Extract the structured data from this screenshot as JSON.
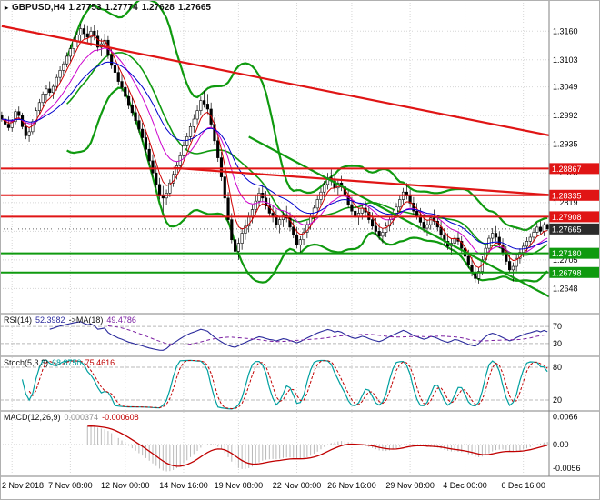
{
  "colors": {
    "resistance": "#e01515",
    "support": "#0f9a0f",
    "bull": "#ffffff",
    "bear": "#000000",
    "grid": "#d6d6d6",
    "separator": "#808080",
    "current_tag": "#2b2b2b",
    "rsi_line": "#2a2a9c",
    "rsi_ma_line": "#7b1fa2",
    "stoch_line": "#00a0a0",
    "signal_line": "#c00000",
    "macd_hist": "#b8b8b8",
    "ma_fast": "#d00000",
    "ma_mid": "#cc00cc",
    "ma_slow": "#0000cc"
  },
  "icons": {
    "chart_marker": "▸"
  },
  "chart_data": {
    "type": "candlestick",
    "title": "GBPUSD,H4",
    "ohlc": {
      "open": "1.27753",
      "high": "1.27774",
      "low": "1.27628",
      "close": "1.27665"
    },
    "price_range": [
      1.2598,
      1.3222
    ],
    "grid": true,
    "price_ticks": [
      "1.3160",
      "1.3103",
      "1.3049",
      "1.2992",
      "1.2935",
      "1.2878",
      "1.2819",
      "1.2762",
      "1.2705",
      "1.2648"
    ],
    "time_labels": [
      "2 Nov 2018",
      "7 Nov 08:00",
      "12 Nov 00:00",
      "14 Nov 16:00",
      "19 Nov 08:00",
      "22 Nov 00:00",
      "26 Nov 16:00",
      "29 Nov 08:00",
      "4 Dec 00:00",
      "6 Dec 16:00"
    ],
    "levels": [
      {
        "price": 1.28867,
        "label": "1.28867",
        "kind": "resistance"
      },
      {
        "price": 1.28335,
        "label": "1.28335",
        "kind": "resistance"
      },
      {
        "price": 1.27908,
        "label": "1.27908",
        "kind": "resistance"
      },
      {
        "price": 1.2718,
        "label": "1.27180",
        "kind": "support"
      },
      {
        "price": 1.26798,
        "label": "1.26798",
        "kind": "support"
      }
    ],
    "current_price": {
      "value": 1.27665,
      "label": "1.27665"
    },
    "trendlines": [
      {
        "kind": "resistance",
        "from": [
          0,
          1.317
        ],
        "to": [
          160,
          1.2952
        ]
      },
      {
        "kind": "resistance",
        "from": [
          50,
          1.2888
        ],
        "to": [
          160,
          1.2834
        ]
      },
      {
        "kind": "support",
        "from": [
          72,
          1.295
        ],
        "to": [
          160,
          1.263
        ]
      }
    ],
    "overlays": {
      "bollinger_period": 20,
      "bollinger_dev": 2,
      "ma_periods": [
        5,
        13,
        24
      ]
    },
    "indicators": {
      "rsi": {
        "name": "RSI(14)",
        "value": "52.3982",
        "ma_name": "->MA(18)",
        "ma_value": "49.4786",
        "period": 14,
        "ma_period": 18,
        "levels": [
          70,
          30
        ],
        "range": [
          0,
          100
        ]
      },
      "stochastic": {
        "name": "Stoch(5,3,3)",
        "value": "68.8750",
        "signal": "75.4616",
        "k": 5,
        "d": 3,
        "slowing": 3,
        "levels": [
          80,
          20
        ],
        "range": [
          0,
          100
        ]
      },
      "macd": {
        "name": "MACD(12,26,9)",
        "value": "0.000374",
        "signal": "-0.000608",
        "fast": 12,
        "slow": 26,
        "signal_period": 9,
        "axis_labels": [
          "0.0066",
          "0.00",
          "-0.0056"
        ],
        "range": [
          -0.0075,
          0.008
        ]
      }
    },
    "candles": [
      [
        1.2992,
        1.3,
        1.298,
        1.2985
      ],
      [
        1.2985,
        1.2995,
        1.297,
        1.2975
      ],
      [
        1.2975,
        1.299,
        1.2962,
        1.2968
      ],
      [
        1.2968,
        1.2985,
        1.296,
        1.298
      ],
      [
        1.298,
        1.3005,
        1.2975,
        1.3
      ],
      [
        1.3,
        1.301,
        1.2985,
        1.2992
      ],
      [
        1.2992,
        1.2998,
        1.2965,
        1.297
      ],
      [
        1.297,
        1.2978,
        1.2945,
        1.2952
      ],
      [
        1.2952,
        1.2968,
        1.294,
        1.296
      ],
      [
        1.296,
        1.2985,
        1.2955,
        1.298
      ],
      [
        1.298,
        1.3008,
        1.2975,
        1.3002
      ],
      [
        1.3002,
        1.3025,
        1.2995,
        1.3018
      ],
      [
        1.3018,
        1.304,
        1.301,
        1.3035
      ],
      [
        1.3035,
        1.3052,
        1.3022,
        1.3045
      ],
      [
        1.3045,
        1.306,
        1.303,
        1.3038
      ],
      [
        1.3038,
        1.3055,
        1.3025,
        1.305
      ],
      [
        1.305,
        1.3075,
        1.3042,
        1.3068
      ],
      [
        1.3068,
        1.309,
        1.306,
        1.3082
      ],
      [
        1.3082,
        1.31,
        1.307,
        1.3095
      ],
      [
        1.3095,
        1.3118,
        1.3088,
        1.311
      ],
      [
        1.311,
        1.3132,
        1.31,
        1.3125
      ],
      [
        1.3125,
        1.3148,
        1.3115,
        1.314
      ],
      [
        1.314,
        1.316,
        1.3128,
        1.3152
      ],
      [
        1.3152,
        1.3175,
        1.314,
        1.3165
      ],
      [
        1.3165,
        1.3174,
        1.3145,
        1.3155
      ],
      [
        1.3155,
        1.317,
        1.3135,
        1.3148
      ],
      [
        1.3148,
        1.3168,
        1.313,
        1.316
      ],
      [
        1.316,
        1.3172,
        1.3142,
        1.315
      ],
      [
        1.315,
        1.3162,
        1.312,
        1.3128
      ],
      [
        1.3128,
        1.3145,
        1.311,
        1.3135
      ],
      [
        1.3135,
        1.3155,
        1.3125,
        1.3142
      ],
      [
        1.3142,
        1.315,
        1.3105,
        1.3112
      ],
      [
        1.3112,
        1.3125,
        1.3085,
        1.3092
      ],
      [
        1.3092,
        1.3108,
        1.307,
        1.3078
      ],
      [
        1.3078,
        1.309,
        1.3052,
        1.306
      ],
      [
        1.306,
        1.3075,
        1.304,
        1.3048
      ],
      [
        1.3048,
        1.3062,
        1.3022,
        1.303
      ],
      [
        1.303,
        1.3045,
        1.3005,
        1.3012
      ],
      [
        1.3012,
        1.3028,
        1.299,
        1.2998
      ],
      [
        1.2998,
        1.3015,
        1.2975,
        1.2982
      ],
      [
        1.2982,
        1.2995,
        1.2958,
        1.2965
      ],
      [
        1.2965,
        1.2978,
        1.294,
        1.2948
      ],
      [
        1.2948,
        1.296,
        1.2918,
        1.2925
      ],
      [
        1.2925,
        1.2938,
        1.2895,
        1.2902
      ],
      [
        1.2902,
        1.2915,
        1.287,
        1.2878
      ],
      [
        1.2878,
        1.2892,
        1.2848,
        1.2855
      ],
      [
        1.2855,
        1.2868,
        1.2825,
        1.2832
      ],
      [
        1.2832,
        1.2852,
        1.28,
        1.2828
      ],
      [
        1.2828,
        1.2845,
        1.2815,
        1.2838
      ],
      [
        1.2838,
        1.2865,
        1.283,
        1.2858
      ],
      [
        1.2858,
        1.2882,
        1.285,
        1.2875
      ],
      [
        1.2875,
        1.29,
        1.2865,
        1.2892
      ],
      [
        1.2892,
        1.292,
        1.2885,
        1.2912
      ],
      [
        1.2912,
        1.294,
        1.2905,
        1.2932
      ],
      [
        1.2932,
        1.2958,
        1.2925,
        1.295
      ],
      [
        1.295,
        1.2978,
        1.294,
        1.297
      ],
      [
        1.297,
        1.2995,
        1.2958,
        1.2985
      ],
      [
        1.2985,
        1.3012,
        1.2975,
        1.3002
      ],
      [
        1.3002,
        1.303,
        1.2992,
        1.3022
      ],
      [
        1.3022,
        1.3042,
        1.3008,
        1.3015
      ],
      [
        1.3015,
        1.3035,
        1.2995,
        1.3005
      ],
      [
        1.3005,
        1.3018,
        1.2968,
        1.2975
      ],
      [
        1.2975,
        1.2988,
        1.2935,
        1.2942
      ],
      [
        1.2942,
        1.2955,
        1.29,
        1.2908
      ],
      [
        1.2908,
        1.292,
        1.2862,
        1.287
      ],
      [
        1.287,
        1.2882,
        1.282,
        1.2828
      ],
      [
        1.2828,
        1.284,
        1.2778,
        1.2785
      ],
      [
        1.2785,
        1.2798,
        1.2738,
        1.2745
      ],
      [
        1.2745,
        1.2762,
        1.27,
        1.2722
      ],
      [
        1.2722,
        1.2748,
        1.2705,
        1.2738
      ],
      [
        1.2738,
        1.2768,
        1.2725,
        1.2758
      ],
      [
        1.2758,
        1.2785,
        1.2745,
        1.2772
      ],
      [
        1.2772,
        1.28,
        1.276,
        1.279
      ],
      [
        1.279,
        1.2815,
        1.2778,
        1.2805
      ],
      [
        1.2805,
        1.2832,
        1.2795,
        1.2822
      ],
      [
        1.2822,
        1.2848,
        1.281,
        1.2838
      ],
      [
        1.2838,
        1.2855,
        1.282,
        1.2828
      ],
      [
        1.2828,
        1.2842,
        1.2805,
        1.2812
      ],
      [
        1.2812,
        1.2828,
        1.279,
        1.2798
      ],
      [
        1.2798,
        1.2815,
        1.278,
        1.279
      ],
      [
        1.279,
        1.2805,
        1.2768,
        1.2775
      ],
      [
        1.2775,
        1.2792,
        1.2758,
        1.2785
      ],
      [
        1.2785,
        1.2802,
        1.277,
        1.2795
      ],
      [
        1.2795,
        1.2812,
        1.278,
        1.2788
      ],
      [
        1.2788,
        1.28,
        1.2762,
        1.277
      ],
      [
        1.277,
        1.2785,
        1.2748,
        1.2755
      ],
      [
        1.2755,
        1.277,
        1.2728,
        1.2735
      ],
      [
        1.2735,
        1.2752,
        1.272,
        1.2745
      ],
      [
        1.2745,
        1.2768,
        1.2735,
        1.276
      ],
      [
        1.276,
        1.2782,
        1.2748,
        1.2775
      ],
      [
        1.2775,
        1.2798,
        1.2765,
        1.279
      ],
      [
        1.279,
        1.2815,
        1.278,
        1.2808
      ],
      [
        1.2808,
        1.2832,
        1.2798,
        1.2825
      ],
      [
        1.2825,
        1.2848,
        1.2815,
        1.284
      ],
      [
        1.284,
        1.2862,
        1.2828,
        1.2855
      ],
      [
        1.2855,
        1.2878,
        1.2845,
        1.2868
      ],
      [
        1.2868,
        1.2885,
        1.2852,
        1.2862
      ],
      [
        1.2862,
        1.2875,
        1.284,
        1.2848
      ],
      [
        1.2848,
        1.2865,
        1.2832,
        1.2858
      ],
      [
        1.2858,
        1.2872,
        1.2842,
        1.285
      ],
      [
        1.285,
        1.2862,
        1.2825,
        1.2832
      ],
      [
        1.2832,
        1.2845,
        1.2808,
        1.2815
      ],
      [
        1.2815,
        1.283,
        1.2795,
        1.2802
      ],
      [
        1.2802,
        1.2818,
        1.2782,
        1.279
      ],
      [
        1.279,
        1.2808,
        1.2775,
        1.2798
      ],
      [
        1.2798,
        1.2815,
        1.2785,
        1.2808
      ],
      [
        1.2808,
        1.2822,
        1.2792,
        1.28
      ],
      [
        1.28,
        1.2812,
        1.2778,
        1.2785
      ],
      [
        1.2785,
        1.28,
        1.2765,
        1.2772
      ],
      [
        1.2772,
        1.2788,
        1.2755,
        1.2762
      ],
      [
        1.2762,
        1.2778,
        1.2745,
        1.2752
      ],
      [
        1.2752,
        1.2768,
        1.2738,
        1.276
      ],
      [
        1.276,
        1.278,
        1.275,
        1.2772
      ],
      [
        1.2772,
        1.2792,
        1.2762,
        1.2785
      ],
      [
        1.2785,
        1.2805,
        1.2775,
        1.2798
      ],
      [
        1.2798,
        1.2818,
        1.2788,
        1.281
      ],
      [
        1.281,
        1.2832,
        1.28,
        1.2825
      ],
      [
        1.2825,
        1.2848,
        1.2815,
        1.284
      ],
      [
        1.284,
        1.2858,
        1.2825,
        1.2832
      ],
      [
        1.2832,
        1.2845,
        1.281,
        1.2818
      ],
      [
        1.2818,
        1.283,
        1.2795,
        1.2802
      ],
      [
        1.2802,
        1.2818,
        1.2785,
        1.2792
      ],
      [
        1.2792,
        1.2808,
        1.2772,
        1.278
      ],
      [
        1.278,
        1.2795,
        1.276,
        1.2768
      ],
      [
        1.2768,
        1.2785,
        1.2752,
        1.2775
      ],
      [
        1.2775,
        1.2795,
        1.2765,
        1.2788
      ],
      [
        1.2788,
        1.2805,
        1.2775,
        1.2782
      ],
      [
        1.2782,
        1.2795,
        1.2762,
        1.277
      ],
      [
        1.277,
        1.2782,
        1.2748,
        1.2755
      ],
      [
        1.2755,
        1.2768,
        1.2735,
        1.2742
      ],
      [
        1.2742,
        1.2758,
        1.2725,
        1.2732
      ],
      [
        1.2732,
        1.2748,
        1.2715,
        1.2738
      ],
      [
        1.2738,
        1.2755,
        1.2728,
        1.2748
      ],
      [
        1.2748,
        1.2762,
        1.2735,
        1.2742
      ],
      [
        1.2742,
        1.2752,
        1.272,
        1.2728
      ],
      [
        1.2728,
        1.274,
        1.2705,
        1.2712
      ],
      [
        1.2712,
        1.2725,
        1.2688,
        1.2695
      ],
      [
        1.2695,
        1.271,
        1.2672,
        1.268
      ],
      [
        1.268,
        1.2695,
        1.266,
        1.2668
      ],
      [
        1.2668,
        1.269,
        1.2658,
        1.2682
      ],
      [
        1.2682,
        1.2712,
        1.2675,
        1.2705
      ],
      [
        1.2705,
        1.2735,
        1.2698,
        1.2728
      ],
      [
        1.2728,
        1.2755,
        1.2718,
        1.2748
      ],
      [
        1.2748,
        1.2768,
        1.2738,
        1.2758
      ],
      [
        1.2758,
        1.2772,
        1.2742,
        1.275
      ],
      [
        1.275,
        1.2762,
        1.2728,
        1.2735
      ],
      [
        1.2735,
        1.2748,
        1.2712,
        1.272
      ],
      [
        1.272,
        1.2732,
        1.2695,
        1.2702
      ],
      [
        1.2702,
        1.2715,
        1.2678,
        1.2685
      ],
      [
        1.2685,
        1.27,
        1.2662,
        1.2692
      ],
      [
        1.2692,
        1.2715,
        1.2682,
        1.2708
      ],
      [
        1.2708,
        1.2728,
        1.2698,
        1.272
      ],
      [
        1.272,
        1.274,
        1.271,
        1.2732
      ],
      [
        1.2732,
        1.275,
        1.2722,
        1.2742
      ],
      [
        1.2742,
        1.2758,
        1.273,
        1.275
      ],
      [
        1.275,
        1.2768,
        1.274,
        1.276
      ],
      [
        1.276,
        1.2778,
        1.275,
        1.277
      ],
      [
        1.277,
        1.2782,
        1.2755,
        1.2762
      ],
      [
        1.2762,
        1.278,
        1.2752,
        1.2775
      ],
      [
        1.27753,
        1.27774,
        1.27628,
        1.27665
      ]
    ]
  }
}
